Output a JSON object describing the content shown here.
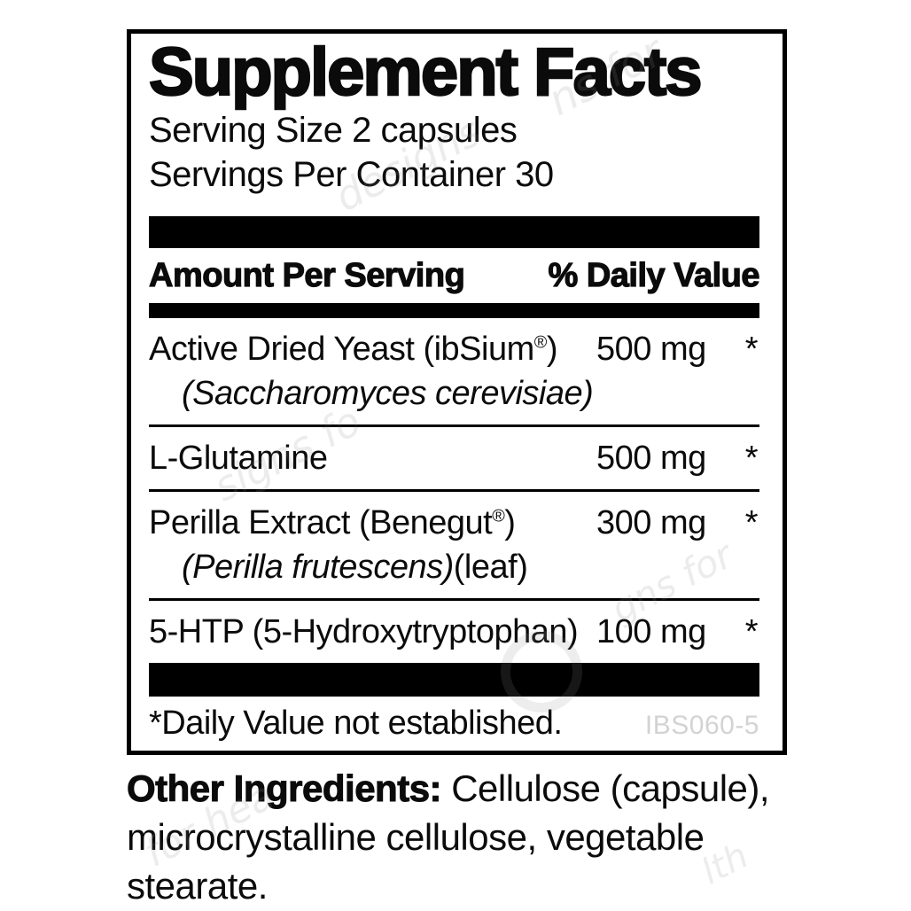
{
  "panel": {
    "title": "Supplement Facts",
    "serving_size": "Serving Size 2 capsules",
    "servings_per_container": "Servings Per Container 30",
    "header": {
      "amount_col": "Amount Per Serving",
      "dv_col": "% Daily Value"
    },
    "rows": [
      {
        "name": "Active Dried Yeast (ibSium",
        "trademark": "®",
        "name_suffix": ")",
        "subline_italic": "(Saccharomyces cerevisiae)",
        "subline_regular": "",
        "amount": "500 mg",
        "daily_value": "*"
      },
      {
        "name": "L-Glutamine",
        "trademark": "",
        "name_suffix": "",
        "amount": "500 mg",
        "daily_value": "*"
      },
      {
        "name": "Perilla Extract (Benegut",
        "trademark": "®",
        "name_suffix": ")",
        "subline_italic": "(Perilla frutescens)",
        "subline_regular": "(leaf)",
        "amount": "300 mg",
        "daily_value": "*"
      },
      {
        "name": "5-HTP (5-Hydroxytryptophan)",
        "trademark": "",
        "name_suffix": "",
        "amount": "100 mg",
        "daily_value": "*"
      }
    ],
    "footnote": "*Daily Value not established.",
    "product_code": "IBS060-5"
  },
  "other_ingredients": {
    "label": "Other Ingredients:",
    "text_line1": "Cellulose (capsule),",
    "text_line2": "microcrystalline cellulose, vegetable stearate."
  },
  "watermarks": {
    "w1": "ns for",
    "w2": "designs",
    "w3": "signs fo",
    "w4": "gns for",
    "w5": "for hea",
    "w6": "lth"
  },
  "colors": {
    "text": "#0b0b0b",
    "bar": "#000000",
    "product_code_gray": "#d3d3d3",
    "watermark_gray": "#8c8c8c"
  }
}
